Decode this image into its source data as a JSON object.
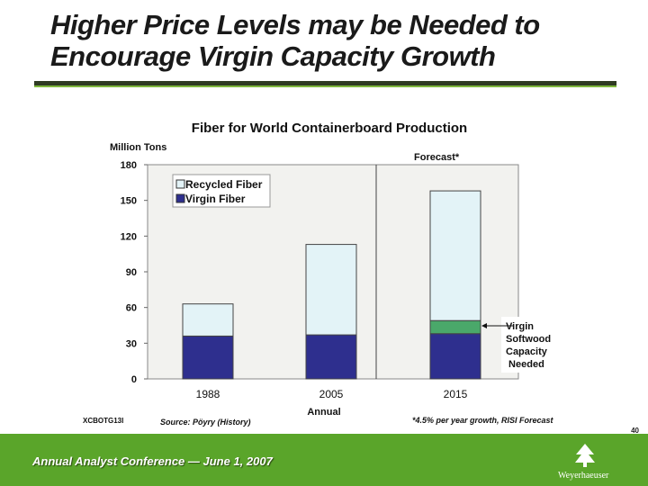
{
  "slide": {
    "title_line1": "Higher Price Levels may be Needed to",
    "title_line2": "Encourage Virgin Capacity Growth",
    "page_number": "40",
    "footer_text": "Annual Analyst Conference — June 1, 2007",
    "logo_text": "Weyerhaeuser",
    "code": "XCBOTG13I",
    "source_note": "Source: Pöyry (History)",
    "forecast_footnote": "*4.5% per year growth, RISI Forecast"
  },
  "colors": {
    "recycled": "#e3f3f7",
    "virgin": "#2e2f8e",
    "virgin_needed": "#4aa86a",
    "plot_bg": "#f2f2ef",
    "footer": "#5aa52a"
  },
  "chart_data": {
    "type": "bar",
    "stacked": true,
    "title": "Fiber for World Containerboard Production",
    "ylabel": "Million Tons",
    "xlabel": "Annual",
    "categories": [
      "1988",
      "2005",
      "2015"
    ],
    "ylim": [
      0,
      180
    ],
    "yticks": [
      "0",
      "30",
      "60",
      "90",
      "120",
      "150",
      "180"
    ],
    "forecast_label": "Forecast*",
    "series": [
      {
        "name": "Virgin Fiber",
        "values": [
          36,
          37,
          38
        ]
      },
      {
        "name": "",
        "values": [
          0,
          0,
          11
        ]
      },
      {
        "name": "Recycled Fiber",
        "values": [
          27,
          76,
          109
        ]
      }
    ],
    "legend": [
      "Recycled Fiber",
      "Virgin Fiber"
    ],
    "legend_position": "top-left",
    "annotation_lines": [
      "Virgin",
      "Softwood",
      "Capacity",
      " Needed"
    ],
    "grid": false
  }
}
